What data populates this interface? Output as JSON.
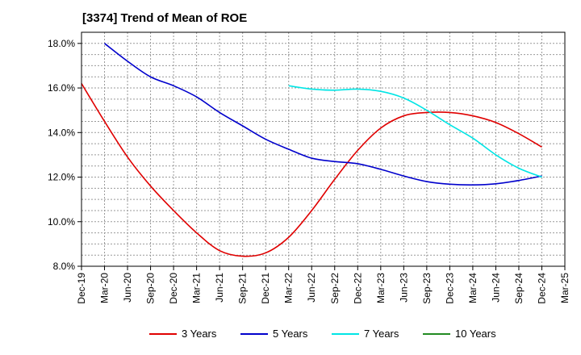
{
  "chart_data": {
    "type": "line",
    "title": "[3374]  Trend of Mean of ROE",
    "x_labels": [
      "Dec-19",
      "Mar-20",
      "Jun-20",
      "Sep-20",
      "Dec-20",
      "Mar-21",
      "Jun-21",
      "Sep-21",
      "Dec-21",
      "Mar-22",
      "Jun-22",
      "Sep-22",
      "Dec-22",
      "Mar-23",
      "Jun-23",
      "Sep-23",
      "Dec-23",
      "Mar-24",
      "Jun-24",
      "Sep-24",
      "Dec-24",
      "Mar-25"
    ],
    "y_ticks": [
      "8.0%",
      "10.0%",
      "12.0%",
      "14.0%",
      "16.0%",
      "18.0%"
    ],
    "ylim": [
      8.0,
      18.5
    ],
    "grid": true,
    "legend_position": "bottom",
    "series": [
      {
        "name": "3 Years",
        "color": "#e00000",
        "values": [
          16.2,
          14.5,
          12.9,
          11.6,
          10.5,
          9.5,
          8.7,
          8.45,
          8.6,
          9.3,
          10.5,
          11.9,
          13.2,
          14.2,
          14.75,
          14.9,
          14.9,
          14.75,
          14.45,
          13.95,
          13.35,
          null
        ]
      },
      {
        "name": "5 Years",
        "color": "#0000cc",
        "values": [
          null,
          18.0,
          17.2,
          16.5,
          16.1,
          15.6,
          14.9,
          14.3,
          13.7,
          13.25,
          12.85,
          12.7,
          12.6,
          12.35,
          12.05,
          11.8,
          11.68,
          11.65,
          11.7,
          11.85,
          12.05,
          null
        ]
      },
      {
        "name": "7 Years",
        "color": "#00e5e5",
        "values": [
          null,
          null,
          null,
          null,
          null,
          null,
          null,
          null,
          null,
          16.1,
          15.95,
          15.9,
          15.95,
          15.85,
          15.55,
          15.0,
          14.35,
          13.75,
          13.0,
          12.4,
          12.0,
          null
        ]
      },
      {
        "name": "10 Years",
        "color": "#228b22",
        "values": [
          null,
          null,
          null,
          null,
          null,
          null,
          null,
          null,
          null,
          null,
          null,
          null,
          null,
          null,
          null,
          null,
          null,
          null,
          null,
          null,
          null,
          null
        ]
      }
    ]
  }
}
